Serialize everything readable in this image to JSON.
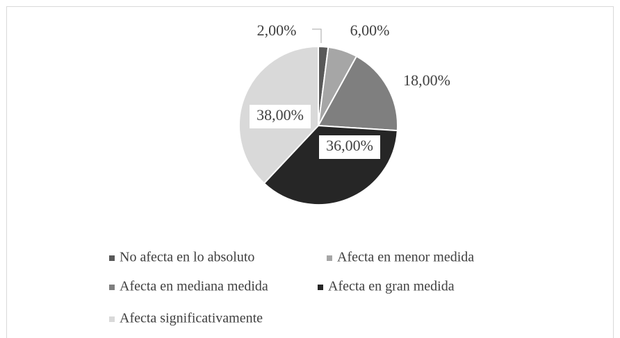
{
  "chart_data": {
    "type": "pie",
    "categories": [
      "No afecta en lo absoluto",
      "Afecta en menor medida",
      "Afecta en mediana medida",
      "Afecta en gran medida",
      "Afecta significativamente"
    ],
    "values": [
      2,
      6,
      18,
      36,
      38
    ],
    "value_labels": [
      "2,00%",
      "6,00%",
      "18,00%",
      "36,00%",
      "38,00%"
    ],
    "colors": [
      "#595959",
      "#a6a6a6",
      "#7f7f7f",
      "#262626",
      "#d9d9d9"
    ],
    "legend": "bottom"
  }
}
